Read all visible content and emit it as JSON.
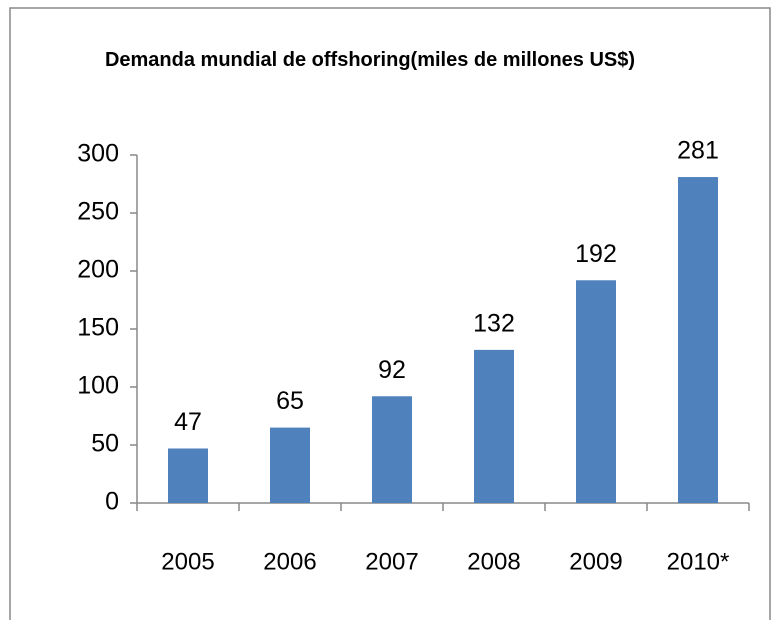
{
  "chart_data": {
    "type": "bar",
    "title": "Demanda mundial de offshoring(miles de millones US$)",
    "categories": [
      "2005",
      "2006",
      "2007",
      "2008",
      "2009",
      "2010*"
    ],
    "values": [
      47,
      65,
      92,
      132,
      192,
      281
    ],
    "color": "#4f81bd",
    "ylim": [
      0,
      300
    ],
    "yticks": [
      0,
      50,
      100,
      150,
      200,
      250,
      300
    ],
    "grid": false
  }
}
